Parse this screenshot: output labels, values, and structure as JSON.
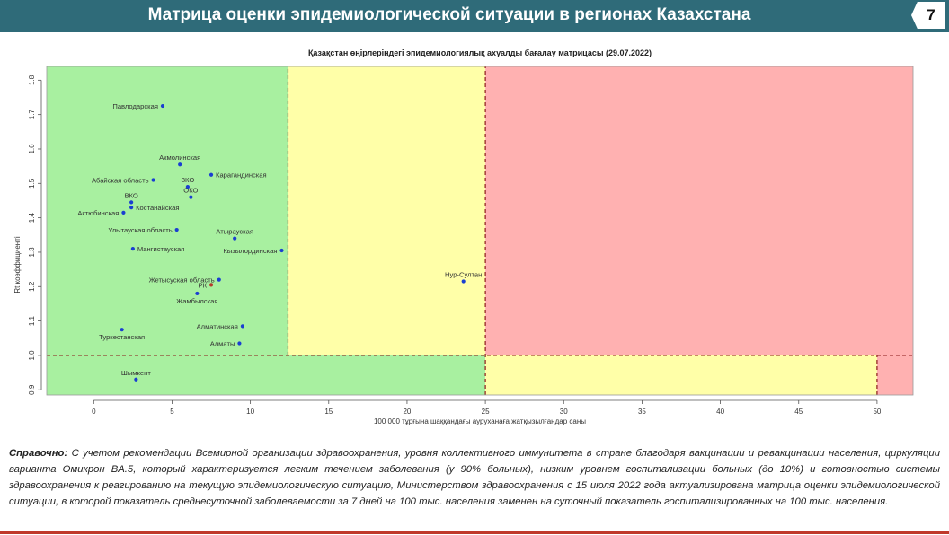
{
  "header": {
    "title": "Матрица оценки эпидемиологической ситуации в регионах Казахстана",
    "page_number": "7"
  },
  "chart_data": {
    "type": "scatter",
    "title": "Қазақстан өңірлеріндегі эпидемиологиялық ахуалды бағалау матрицасы (29.07.2022)",
    "xlabel": "100 000 тұрғына шаққандағы ауруханаға жатқызылғандар саны",
    "ylabel": "Rt коэффициенті",
    "xlim": [
      -3,
      52.3
    ],
    "ylim": [
      0.885,
      1.84
    ],
    "x_ticks": [
      0,
      5,
      10,
      15,
      20,
      25,
      30,
      35,
      40,
      45,
      50
    ],
    "y_ticks": [
      0.9,
      1.0,
      1.1,
      1.2,
      1.3,
      1.4,
      1.5,
      1.6,
      1.7,
      1.8
    ],
    "zones": [
      {
        "x": [
          -3,
          12.4
        ],
        "y": [
          1.0,
          1.84
        ],
        "color": "#a8f0a0"
      },
      {
        "x": [
          12.4,
          25
        ],
        "y": [
          1.0,
          1.84
        ],
        "color": "#ffffa8"
      },
      {
        "x": [
          25,
          52.3
        ],
        "y": [
          1.0,
          1.84
        ],
        "color": "#ffb1b1"
      },
      {
        "x": [
          -3,
          25
        ],
        "y": [
          0.885,
          1.0
        ],
        "color": "#a8f0a0"
      },
      {
        "x": [
          25,
          50
        ],
        "y": [
          0.885,
          1.0
        ],
        "color": "#ffffa8"
      },
      {
        "x": [
          50,
          52.3
        ],
        "y": [
          0.885,
          1.0
        ],
        "color": "#ffb1b1"
      }
    ],
    "threshold_lines": [
      {
        "orient": "v",
        "x": 12.4,
        "y": [
          1.0,
          1.84
        ]
      },
      {
        "orient": "v",
        "x": 25,
        "y": [
          0.885,
          1.84
        ]
      },
      {
        "orient": "v",
        "x": 50,
        "y": [
          0.885,
          1.0
        ]
      },
      {
        "orient": "h",
        "y": 1.0,
        "x": [
          -3,
          52.3
        ]
      }
    ],
    "points": [
      {
        "label": "Павлодарская",
        "x": 4.4,
        "y": 1.725,
        "color": "#1a3fd1",
        "label_pos": "left"
      },
      {
        "label": "Акмолинская",
        "x": 5.5,
        "y": 1.555,
        "color": "#1a3fd1",
        "label_pos": "above"
      },
      {
        "label": "Карагандинская",
        "x": 7.5,
        "y": 1.525,
        "color": "#1a3fd1",
        "label_pos": "right"
      },
      {
        "label": "Абайская область",
        "x": 3.8,
        "y": 1.51,
        "color": "#1a3fd1",
        "label_pos": "left"
      },
      {
        "label": "ЗКО",
        "x": 6.0,
        "y": 1.49,
        "color": "#1a3fd1",
        "label_pos": "above"
      },
      {
        "label": "ОКО",
        "x": 6.2,
        "y": 1.46,
        "color": "#1a3fd1",
        "label_pos": "above"
      },
      {
        "label": "ВКО",
        "x": 2.4,
        "y": 1.445,
        "color": "#1a3fd1",
        "label_pos": "above"
      },
      {
        "label": "Костанайская",
        "x": 2.4,
        "y": 1.43,
        "color": "#1a3fd1",
        "label_pos": "right"
      },
      {
        "label": "Актюбинская",
        "x": 1.9,
        "y": 1.415,
        "color": "#1a3fd1",
        "label_pos": "left"
      },
      {
        "label": "Улытауская область",
        "x": 5.3,
        "y": 1.365,
        "color": "#1a3fd1",
        "label_pos": "left"
      },
      {
        "label": "Атырауская",
        "x": 9.0,
        "y": 1.34,
        "color": "#1a3fd1",
        "label_pos": "above"
      },
      {
        "label": "Мангистауская",
        "x": 2.5,
        "y": 1.31,
        "color": "#1a3fd1",
        "label_pos": "right"
      },
      {
        "label": "Кызылординская",
        "x": 12.0,
        "y": 1.305,
        "color": "#1a3fd1",
        "label_pos": "left"
      },
      {
        "label": "Жетысуская область",
        "x": 8.0,
        "y": 1.22,
        "color": "#1a3fd1",
        "label_pos": "left"
      },
      {
        "label": "РК",
        "x": 7.5,
        "y": 1.205,
        "color": "#b53b2b",
        "label_pos": "left"
      },
      {
        "label": "Жамбылская",
        "x": 6.6,
        "y": 1.18,
        "color": "#1a3fd1",
        "label_pos": "below"
      },
      {
        "label": "Нур-Султан",
        "x": 23.6,
        "y": 1.215,
        "color": "#1a3fd1",
        "label_pos": "above"
      },
      {
        "label": "Туркестанская",
        "x": 1.8,
        "y": 1.075,
        "color": "#1a3fd1",
        "label_pos": "below"
      },
      {
        "label": "Алматинская",
        "x": 9.5,
        "y": 1.085,
        "color": "#1a3fd1",
        "label_pos": "left"
      },
      {
        "label": "Алматы",
        "x": 9.3,
        "y": 1.035,
        "color": "#1a3fd1",
        "label_pos": "left"
      },
      {
        "label": "Шымкент",
        "x": 2.7,
        "y": 0.93,
        "color": "#1a3fd1",
        "label_pos": "above"
      }
    ]
  },
  "note": {
    "lead": "Справочно:",
    "text": "С учетом рекомендации Всемирной организации здравоохранения, уровня коллективного иммунитета в стране благодаря вакцинации и ревакцинации населения, циркуляции варианта Омикрон BA.5, который характеризуется легким течением заболевания (у 90% больных), низким уровнем госпитализации больных (до 10%) и готовностью системы здравоохранения к реагированию на текущую эпидемиологическую ситуацию, Министерством здравоохранения с 15 июля 2022 года актуализирована матрица оценки эпидемиологической ситуации, в которой показатель среднесуточной заболеваемости за 7 дней на 100 тыс. населения заменен на суточный показатель госпитализированных на 100 тыс. населения."
  }
}
